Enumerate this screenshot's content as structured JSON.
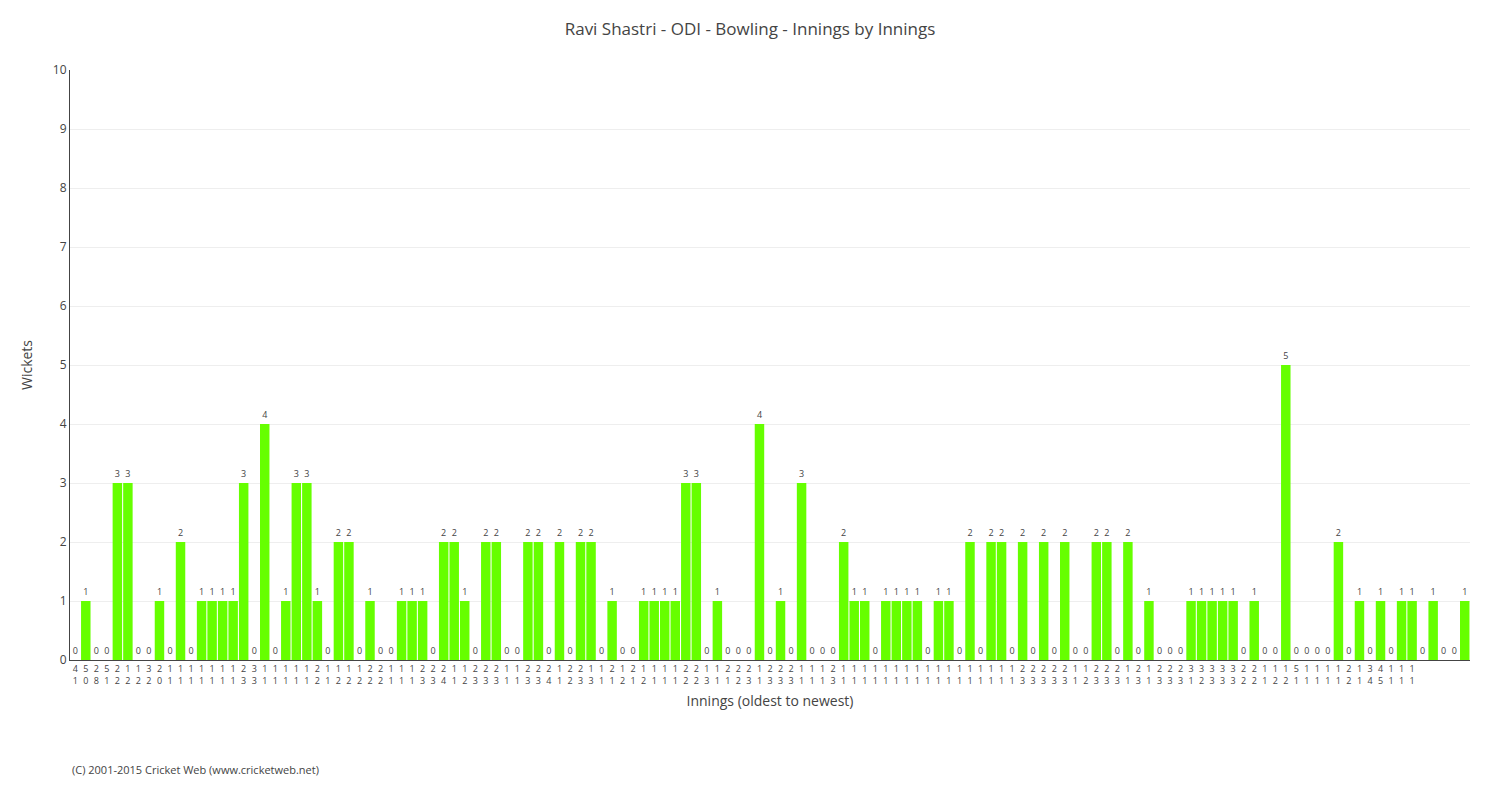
{
  "chart_data": {
    "type": "bar",
    "title": "Ravi Shastri - ODI - Bowling - Innings by Innings",
    "x_label": "Innings (oldest to newest)",
    "y_label": "Wickets",
    "annotations": [
      "(C) 2001-2015 Cricket Web (www.cricketweb.net)"
    ],
    "color": "#66FF00",
    "ylim": [
      0,
      10
    ],
    "yticks": [
      0,
      1,
      2,
      3,
      4,
      5,
      6,
      7,
      8,
      9,
      10
    ],
    "grid": true,
    "data_labels": true,
    "categories": [
      "4\n1",
      "5\n0",
      "2\n8",
      "5\n1",
      "2\n2",
      "1\n2",
      "1\n2",
      "3\n2",
      "2\n0",
      "1\n1",
      "1\n1",
      "1\n1",
      "1\n1",
      "1\n1",
      "1\n1",
      "1\n1",
      "2\n3",
      "3\n3",
      "1\n1",
      "1\n1",
      "1\n1",
      "1\n1",
      "1\n1",
      "2\n2",
      "1\n1",
      "1\n2",
      "1\n2",
      "1\n2",
      "2\n2",
      "2\n2",
      "1\n1",
      "1\n1",
      "1\n1",
      "2\n3",
      "2\n3",
      "2\n4",
      "1\n1",
      "1\n2",
      "2\n3",
      "2\n3",
      "2\n3",
      "1\n1",
      "1\n1",
      "2\n3",
      "2\n3",
      "2\n4",
      "1\n1",
      "2\n2",
      "2\n3",
      "1\n3",
      "1\n1",
      "2\n1",
      "1\n2",
      "2\n1",
      "1\n2",
      "1\n1",
      "1\n1",
      "1\n1",
      "2\n2",
      "2\n2",
      "1\n3",
      "1\n1",
      "2\n1",
      "2\n2",
      "2\n3",
      "1\n1",
      "2\n3",
      "2\n3",
      "2\n3",
      "1\n1",
      "1\n1",
      "1\n1",
      "2\n3",
      "1\n1",
      "1\n1",
      "1\n1",
      "1\n1",
      "1\n1",
      "1\n1",
      "1\n1",
      "1\n1",
      "1\n1",
      "1\n1",
      "1\n1",
      "1\n1",
      "1\n1",
      "1\n1",
      "1\n1",
      "1\n1",
      "1\n1",
      "2\n3",
      "2\n3",
      "2\n3",
      "2\n3",
      "2\n3",
      "1\n1",
      "1\n2",
      "2\n3",
      "2\n3",
      "2\n3",
      "1\n1",
      "2\n3",
      "1\n1",
      "2\n3",
      "2\n3",
      "2\n3",
      "3\n1",
      "3\n2",
      "3\n3",
      "3\n3",
      "3\n3",
      "2\n2",
      "2\n2",
      "1\n1",
      "1\n2",
      "1\n2",
      "5\n1",
      "1\n1",
      "1\n1",
      "1\n1",
      "1\n1",
      "2\n2",
      "1\n1",
      "3\n4",
      "4\n5",
      "1\n1",
      "1\n1",
      "1\n1",
      null,
      null,
      null,
      null,
      null
    ],
    "values": [
      0,
      1,
      0,
      0,
      3,
      3,
      0,
      0,
      1,
      0,
      2,
      0,
      1,
      1,
      1,
      1,
      3,
      0,
      4,
      0,
      1,
      3,
      3,
      1,
      0,
      2,
      2,
      0,
      1,
      0,
      0,
      1,
      1,
      1,
      0,
      2,
      2,
      1,
      0,
      2,
      2,
      0,
      0,
      2,
      2,
      0,
      2,
      0,
      2,
      2,
      0,
      1,
      0,
      0,
      1,
      1,
      1,
      1,
      3,
      3,
      0,
      1,
      0,
      0,
      0,
      4,
      0,
      1,
      0,
      3,
      0,
      0,
      0,
      2,
      1,
      1,
      0,
      1,
      1,
      1,
      1,
      0,
      1,
      1,
      0,
      2,
      0,
      2,
      2,
      0,
      2,
      0,
      2,
      0,
      2,
      0,
      0,
      2,
      2,
      0,
      2,
      0,
      1,
      0,
      0,
      0,
      1,
      1,
      1,
      1,
      1,
      0,
      1,
      0,
      0,
      5,
      0,
      0,
      0,
      0,
      2,
      0,
      1,
      0,
      1,
      0,
      1,
      1,
      0,
      1,
      0,
      0,
      1
    ]
  }
}
